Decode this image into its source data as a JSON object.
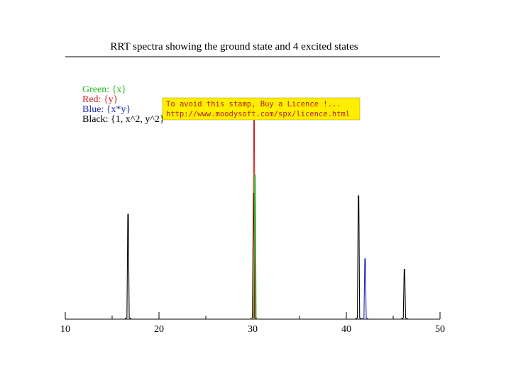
{
  "chart_data": {
    "type": "line",
    "title": "RRT spectra showing the ground state and 4 excited states",
    "xlabel": "",
    "ylabel": "",
    "xlim": [
      10,
      50
    ],
    "ylim": [
      0,
      1
    ],
    "grid": false,
    "x_ticks": [
      10,
      20,
      30,
      40,
      50
    ],
    "x_minor_ticks": [
      15,
      25,
      35,
      45
    ],
    "legend_position": "top-left",
    "legend": [
      {
        "text": "Green: {x}",
        "color": "#22bb22"
      },
      {
        "text": "Red: {y}",
        "color": "#cc2222"
      },
      {
        "text": "Blue: {x*y}",
        "color": "#1a2bb0"
      },
      {
        "text": "Black: {1, x^2, y^2}",
        "color": "#000000"
      }
    ],
    "series": [
      {
        "name": "Black: {1, x^2, y^2}",
        "color": "#000000",
        "peaks": [
          {
            "x": 16.7,
            "y": 0.4
          },
          {
            "x": 30.1,
            "y": 0.48
          },
          {
            "x": 41.3,
            "y": 0.47
          },
          {
            "x": 46.2,
            "y": 0.19
          }
        ]
      },
      {
        "name": "Green: {x}",
        "color": "#22bb22",
        "peaks": [
          {
            "x": 30.25,
            "y": 0.55
          }
        ]
      },
      {
        "name": "Red: {y}",
        "color": "#cc2222",
        "peaks": [
          {
            "x": 30.15,
            "y": 0.77
          }
        ]
      },
      {
        "name": "Blue: {x*y}",
        "color": "#1a2bb0",
        "peaks": [
          {
            "x": 42.0,
            "y": 0.23
          }
        ]
      }
    ]
  },
  "stamp": {
    "line1": "To avoid this stamp, Buy a Licence !...",
    "line2": "http://www.moodysoft.com/spx/licence.html",
    "background": "#ffee00"
  }
}
